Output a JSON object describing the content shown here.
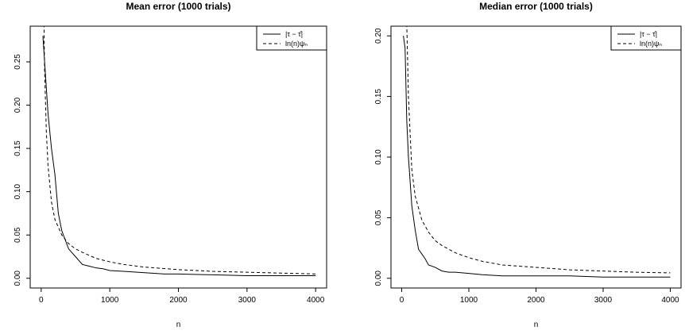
{
  "chart_data": [
    {
      "type": "line",
      "title": "Mean error (1000 trials)",
      "xlabel": "n",
      "ylabel": "",
      "xlim": [
        0,
        4000
      ],
      "ylim": [
        0,
        0.28
      ],
      "xticks": [
        0,
        1000,
        2000,
        3000,
        4000
      ],
      "xtick_labels": [
        "0",
        "1000",
        "2000",
        "3000",
        "4000"
      ],
      "yticks": [
        0,
        0.05,
        0.1,
        0.15,
        0.2,
        0.25
      ],
      "ytick_labels": [
        "0.00",
        "0.05",
        "0.10",
        "0.15",
        "0.20",
        "0.25"
      ],
      "grid": false,
      "legend": "top-right",
      "series": [
        {
          "name": "|τ − τ̂|",
          "style": "solid",
          "x": [
            25,
            50,
            75,
            100,
            150,
            200,
            250,
            300,
            400,
            500,
            600,
            700,
            800,
            900,
            1000,
            1200,
            1400,
            1600,
            1800,
            2000,
            2500,
            3000,
            3500,
            4000
          ],
          "y": [
            0.28,
            0.25,
            0.22,
            0.19,
            0.15,
            0.12,
            0.075,
            0.055,
            0.034,
            0.025,
            0.016,
            0.014,
            0.012,
            0.011,
            0.009,
            0.008,
            0.007,
            0.006,
            0.005,
            0.005,
            0.004,
            0.003,
            0.003,
            0.003
          ]
        },
        {
          "name": "ln(n)ψₙ",
          "style": "dashed",
          "x": [
            40,
            50,
            75,
            100,
            150,
            200,
            300,
            400,
            500,
            600,
            800,
            1000,
            1200,
            1500,
            2000,
            2500,
            3000,
            3500,
            4000
          ],
          "y": [
            0.3,
            0.24,
            0.17,
            0.13,
            0.088,
            0.068,
            0.05,
            0.04,
            0.034,
            0.03,
            0.023,
            0.019,
            0.016,
            0.013,
            0.01,
            0.008,
            0.007,
            0.006,
            0.005
          ]
        }
      ]
    },
    {
      "type": "line",
      "title": "Median error (1000 trials)",
      "xlabel": "n",
      "ylabel": "",
      "xlim": [
        0,
        4000
      ],
      "ylim": [
        0,
        0.2
      ],
      "xticks": [
        0,
        1000,
        2000,
        3000,
        4000
      ],
      "xtick_labels": [
        "0",
        "1000",
        "2000",
        "3000",
        "4000"
      ],
      "yticks": [
        0,
        0.05,
        0.1,
        0.15,
        0.2
      ],
      "ytick_labels": [
        "0.00",
        "0.05",
        "0.10",
        "0.15",
        "0.20"
      ],
      "grid": false,
      "legend": "top-right",
      "series": [
        {
          "name": "|τ − τ̂|",
          "style": "solid",
          "x": [
            25,
            50,
            75,
            100,
            150,
            200,
            250,
            300,
            350,
            400,
            500,
            600,
            700,
            800,
            1000,
            1200,
            1500,
            2000,
            2500,
            3000,
            3500,
            4000
          ],
          "y": [
            0.2,
            0.19,
            0.13,
            0.1,
            0.06,
            0.04,
            0.024,
            0.02,
            0.016,
            0.011,
            0.009,
            0.006,
            0.005,
            0.005,
            0.004,
            0.003,
            0.002,
            0.002,
            0.002,
            0.001,
            0.001,
            0.001
          ]
        },
        {
          "name": "ln(n)ψₙ",
          "style": "dashed",
          "x": [
            75,
            100,
            150,
            200,
            300,
            400,
            500,
            600,
            800,
            1000,
            1200,
            1500,
            2000,
            2500,
            3000,
            3500,
            4000
          ],
          "y": [
            0.21,
            0.15,
            0.09,
            0.068,
            0.048,
            0.038,
            0.031,
            0.027,
            0.021,
            0.017,
            0.014,
            0.011,
            0.009,
            0.007,
            0.006,
            0.005,
            0.0045
          ]
        }
      ]
    }
  ]
}
